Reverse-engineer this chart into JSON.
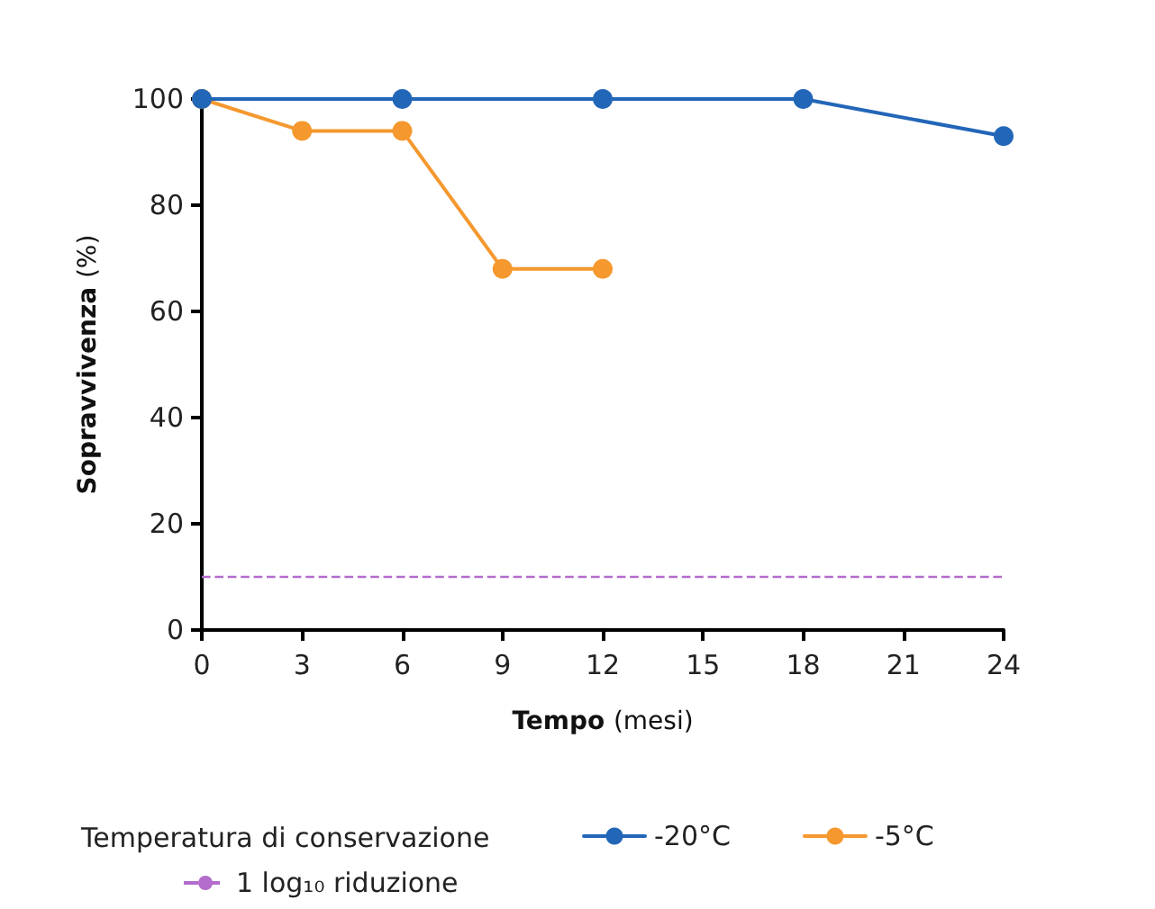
{
  "chart_data": {
    "type": "line",
    "xlabel": "Tempo (mesi)",
    "ylabel": "Sopravvivenza (%)",
    "legend_title": "Temperatura di conservazione",
    "series": [
      {
        "name": "-20°C",
        "color": "#2266b8",
        "x": [
          0,
          6,
          12,
          18,
          24
        ],
        "values": [
          100,
          100,
          100,
          100,
          93
        ]
      },
      {
        "name": "-5°C",
        "color": "#f5982e",
        "x": [
          0,
          3,
          6,
          9,
          12
        ],
        "values": [
          100,
          94,
          94,
          68,
          68
        ]
      }
    ],
    "ref_lines": [
      {
        "axis": "y",
        "value": 10,
        "label": "1 log₁₀ riduzione",
        "color": "#b36ccc",
        "line_style": "dashed"
      }
    ],
    "xlim": [
      0,
      24
    ],
    "xticks": [
      0,
      3,
      6,
      9,
      12,
      15,
      18,
      21,
      24
    ],
    "ylim": [
      0,
      100
    ],
    "yticks": [
      0,
      20,
      40,
      60,
      80,
      100
    ],
    "grid": false,
    "legend": "bottom",
    "marker": "circle",
    "line_style": "solid"
  }
}
